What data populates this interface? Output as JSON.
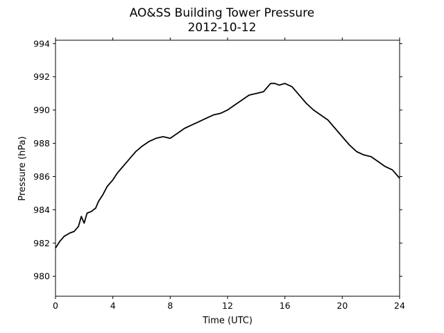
{
  "chart_data": {
    "type": "line",
    "title": "AO&SS Building Tower Pressure",
    "subtitle": "2012-10-12",
    "xlabel": "Time (UTC)",
    "ylabel": "Pressure (hPa)",
    "xlim": [
      0,
      24
    ],
    "ylim": [
      978.8,
      994.2
    ],
    "xticks": [
      0,
      4,
      8,
      12,
      16,
      20,
      24
    ],
    "yticks": [
      980,
      982,
      984,
      986,
      988,
      990,
      992,
      994
    ],
    "grid": false,
    "line_color": "#000000",
    "series": [
      {
        "x": [
          0,
          0.3,
          0.6,
          1.0,
          1.3,
          1.6,
          1.8,
          2.0,
          2.2,
          2.5,
          2.8,
          3.0,
          3.3,
          3.6,
          4.0,
          4.3,
          4.6,
          5.0,
          5.3,
          5.6,
          6.0,
          6.5,
          7.0,
          7.5,
          8.0,
          8.5,
          9.0,
          9.5,
          10.0,
          10.5,
          11.0,
          11.5,
          12.0,
          12.5,
          13.0,
          13.5,
          14.0,
          14.5,
          15.0,
          15.3,
          15.6,
          16.0,
          16.5,
          17.0,
          17.5,
          18.0,
          18.5,
          19.0,
          19.5,
          20.0,
          20.5,
          21.0,
          21.5,
          22.0,
          22.5,
          23.0,
          23.5,
          24.0
        ],
        "y": [
          981.7,
          982.1,
          982.4,
          982.6,
          982.7,
          983.0,
          983.6,
          983.2,
          983.8,
          983.9,
          984.1,
          984.5,
          984.9,
          985.4,
          985.8,
          986.2,
          986.5,
          986.9,
          987.2,
          987.5,
          987.8,
          988.1,
          988.3,
          988.4,
          988.3,
          988.6,
          988.9,
          989.1,
          989.3,
          989.5,
          989.7,
          989.8,
          990.0,
          990.3,
          990.6,
          990.9,
          991.0,
          991.1,
          991.6,
          991.6,
          991.5,
          991.6,
          991.4,
          990.9,
          990.4,
          990.0,
          989.7,
          989.4,
          988.9,
          988.4,
          987.9,
          987.5,
          987.3,
          987.2,
          986.9,
          986.6,
          986.4,
          985.9
        ]
      }
    ]
  }
}
